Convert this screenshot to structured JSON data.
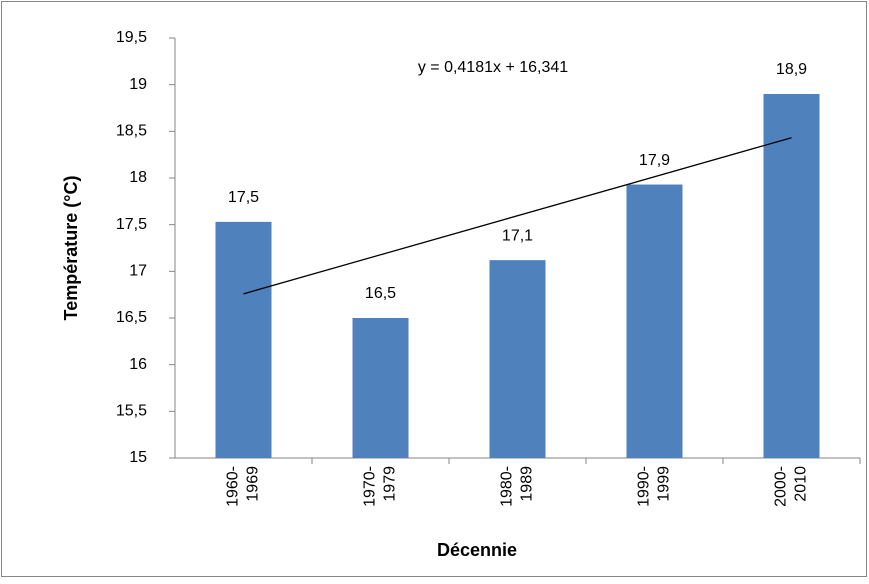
{
  "chart_data": {
    "type": "bar",
    "x_label": "Décennie",
    "y_label": "Température (°C)",
    "categories": [
      "1960- 1969",
      "1970- 1979",
      "1980- 1989",
      "1990- 1999",
      "2000- 2010"
    ],
    "values": [
      17.53,
      16.5,
      17.12,
      17.93,
      18.9
    ],
    "value_labels": [
      "17,5",
      "16,5",
      "17,1",
      "17,9",
      "18,9"
    ],
    "color": "#4f81bd",
    "ylim": [
      15,
      19.5
    ],
    "yticks": [
      15,
      {
        "value": 15.5,
        "label": "15,5"
      },
      16,
      {
        "value": 16.5,
        "label": "16,5"
      },
      17,
      {
        "value": 17.5,
        "label": "17,5"
      },
      18,
      {
        "value": 18.5,
        "label": "18,5"
      },
      19,
      {
        "value": 19.5,
        "label": "19,5"
      }
    ],
    "grid": false,
    "trendline": {
      "slope": 0.4181,
      "intercept": 16.341,
      "label": "y = 0,4181x + 16,341"
    }
  }
}
